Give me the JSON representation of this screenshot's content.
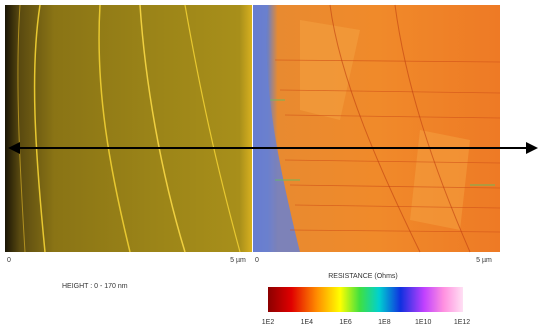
{
  "left_image": {
    "scale_start": "0",
    "scale_end": "5 µm",
    "caption": "HEIGHT : 0 - 170 nm"
  },
  "right_image": {
    "scale_start": "0",
    "scale_end": "5 µm"
  },
  "colorbar": {
    "title": "RESISTANCE (Ohms)",
    "labels": [
      "1E2",
      "1E4",
      "1E6",
      "1E8",
      "1E10",
      "1E12"
    ]
  }
}
